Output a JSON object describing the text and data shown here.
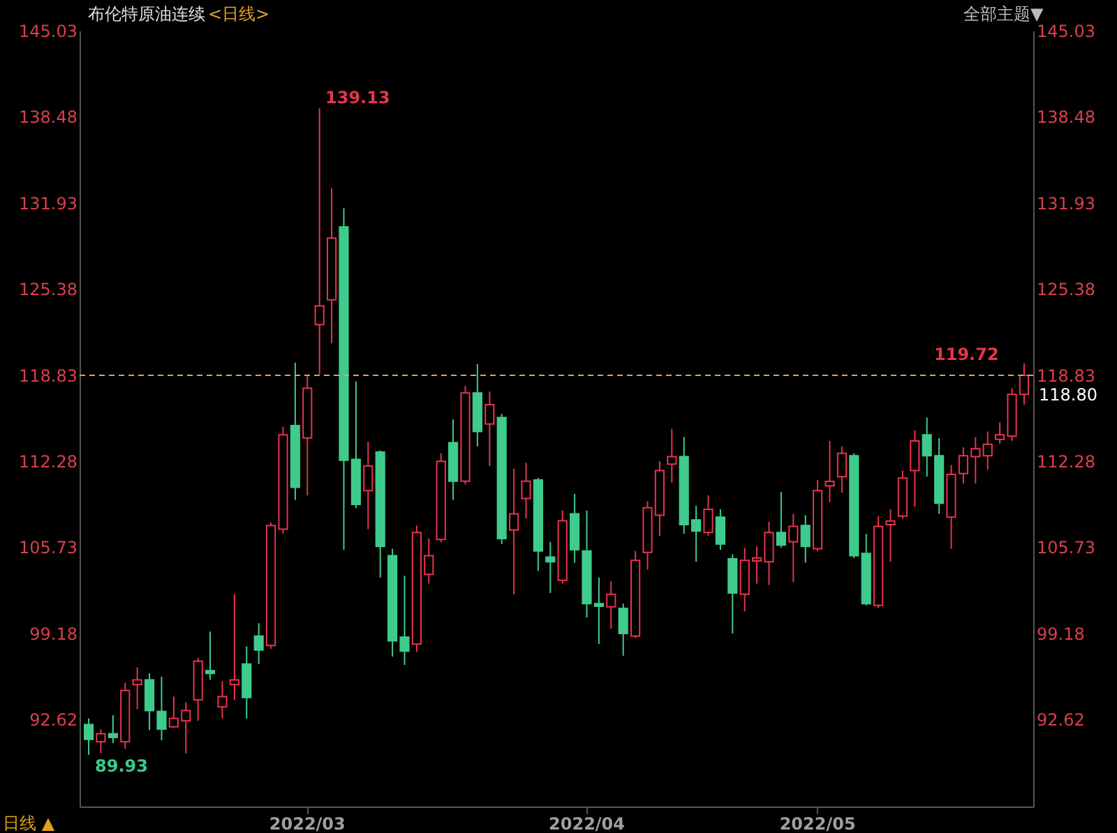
{
  "chart_data": {
    "type": "candlestick",
    "title": "布伦特原油连续",
    "subtitle": "<日线>",
    "categories": [
      null,
      null,
      null,
      null,
      null,
      null,
      null,
      null,
      null,
      null,
      null,
      null,
      null,
      null,
      null,
      null,
      null,
      null,
      "2022/03",
      null,
      null,
      null,
      null,
      null,
      null,
      null,
      null,
      null,
      null,
      null,
      null,
      null,
      null,
      null,
      null,
      null,
      null,
      null,
      null,
      null,
      null,
      "2022/04",
      null,
      null,
      null,
      null,
      null,
      null,
      null,
      null,
      null,
      null,
      null,
      null,
      null,
      null,
      null,
      null,
      null,
      null,
      "2022/05",
      null,
      null,
      null,
      null,
      null,
      null,
      null,
      null,
      null,
      null,
      null,
      null,
      null,
      null,
      null,
      null,
      null
    ],
    "ohlc": [
      [
        92.24,
        92.7,
        89.93,
        91.11
      ],
      [
        90.93,
        91.88,
        90.04,
        91.53
      ],
      [
        91.53,
        92.95,
        90.82,
        91.25
      ],
      [
        90.93,
        95.42,
        90.4,
        94.82
      ],
      [
        95.28,
        96.59,
        93.41,
        95.64
      ],
      [
        95.64,
        96.13,
        91.81,
        93.3
      ],
      [
        93.23,
        95.88,
        91.04,
        91.89
      ],
      [
        92.06,
        94.36,
        91.99,
        92.7
      ],
      [
        92.52,
        93.94,
        90.04,
        93.3
      ],
      [
        94.11,
        97.3,
        92.52,
        97.05
      ],
      [
        96.34,
        99.31,
        95.64,
        96.13
      ],
      [
        93.58,
        95.53,
        92.7,
        94.36
      ],
      [
        95.28,
        102.15,
        94.11,
        95.64
      ],
      [
        96.84,
        98.18,
        92.7,
        94.29
      ],
      [
        98.96,
        99.95,
        96.84,
        97.9
      ],
      [
        98.25,
        107.6,
        98.0,
        107.38
      ],
      [
        107.1,
        114.89,
        106.75,
        114.28
      ],
      [
        114.99,
        119.77,
        109.33,
        110.29
      ],
      [
        114.04,
        118.78,
        109.68,
        117.82
      ],
      [
        122.67,
        139.13,
        118.88,
        124.09
      ],
      [
        124.55,
        133.04,
        121.25,
        129.25
      ],
      [
        130.1,
        131.52,
        105.54,
        112.34
      ],
      [
        112.41,
        118.35,
        108.7,
        108.98
      ],
      [
        110.04,
        113.75,
        107.1,
        111.91
      ],
      [
        112.97,
        113.1,
        103.42,
        105.79
      ],
      [
        105.08,
        105.61,
        97.4,
        98.61
      ],
      [
        98.89,
        103.56,
        96.77,
        97.83
      ],
      [
        98.36,
        107.38,
        97.76,
        106.85
      ],
      [
        103.67,
        106.39,
        102.96,
        105.08
      ],
      [
        106.32,
        112.87,
        106.1,
        112.27
      ],
      [
        113.68,
        115.45,
        109.33,
        110.75
      ],
      [
        110.75,
        118.0,
        110.5,
        117.47
      ],
      [
        117.47,
        119.66,
        113.4,
        114.53
      ],
      [
        115.1,
        117.57,
        111.91,
        116.58
      ],
      [
        115.59,
        115.88,
        105.97,
        106.39
      ],
      [
        107.03,
        111.7,
        102.15,
        108.27
      ],
      [
        109.44,
        112.16,
        107.91,
        110.75
      ],
      [
        110.85,
        111.0,
        103.92,
        105.44
      ],
      [
        104.98,
        106.14,
        102.25,
        104.62
      ],
      [
        103.21,
        108.52,
        102.96,
        107.74
      ],
      [
        108.27,
        109.79,
        104.55,
        105.54
      ],
      [
        105.44,
        108.52,
        100.38,
        101.44
      ],
      [
        101.44,
        103.42,
        98.36,
        101.23
      ],
      [
        101.19,
        103.14,
        99.53,
        102.15
      ],
      [
        101.08,
        101.44,
        97.47,
        99.17
      ],
      [
        98.96,
        105.44,
        98.82,
        104.73
      ],
      [
        105.33,
        109.22,
        104.02,
        108.73
      ],
      [
        108.16,
        112.27,
        106.6,
        111.56
      ],
      [
        112.05,
        114.74,
        110.64,
        112.62
      ],
      [
        112.62,
        114.11,
        106.75,
        107.45
      ],
      [
        107.81,
        108.87,
        104.62,
        106.96
      ],
      [
        106.85,
        109.68,
        106.6,
        108.62
      ],
      [
        108.02,
        108.62,
        105.54,
        105.97
      ],
      [
        104.84,
        105.19,
        99.17,
        102.25
      ],
      [
        102.15,
        105.68,
        100.84,
        104.73
      ],
      [
        104.69,
        105.79,
        102.96,
        104.91
      ],
      [
        104.62,
        107.67,
        102.85,
        106.85
      ],
      [
        106.85,
        109.93,
        105.7,
        105.9
      ],
      [
        106.14,
        108.27,
        103.07,
        107.31
      ],
      [
        107.38,
        108.16,
        104.55,
        105.79
      ],
      [
        105.61,
        110.85,
        105.44,
        110.04
      ],
      [
        110.39,
        113.82,
        109.15,
        110.74
      ],
      [
        111.1,
        113.4,
        109.86,
        112.87
      ],
      [
        112.69,
        112.87,
        104.9,
        105.08
      ],
      [
        105.26,
        106.74,
        101.3,
        101.44
      ],
      [
        101.3,
        108.09,
        101.1,
        107.31
      ],
      [
        107.45,
        108.62,
        104.62,
        107.73
      ],
      [
        108.09,
        111.56,
        107.9,
        110.99
      ],
      [
        111.56,
        114.63,
        108.8,
        113.82
      ],
      [
        114.28,
        115.59,
        111.1,
        112.69
      ],
      [
        112.69,
        114.03,
        108.27,
        109.08
      ],
      [
        108.02,
        111.98,
        105.61,
        111.27
      ],
      [
        111.34,
        113.33,
        110.57,
        112.69
      ],
      [
        112.62,
        114.1,
        110.57,
        113.22
      ],
      [
        112.69,
        114.53,
        111.63,
        113.57
      ],
      [
        113.93,
        115.24,
        113.6,
        114.28
      ],
      [
        114.17,
        117.82,
        113.82,
        117.36
      ],
      [
        117.36,
        119.72,
        116.58,
        118.8
      ]
    ],
    "ylim": [
      86.0,
      145.03
    ],
    "yticks": [
      92.62,
      99.18,
      105.73,
      112.28,
      118.83,
      125.38,
      131.93,
      138.48,
      145.03
    ],
    "y2lim": [
      86.0,
      145.03
    ],
    "y2ticks": [
      92.62,
      99.18,
      105.73,
      112.28,
      118.83,
      125.38,
      131.93,
      138.48,
      145.03
    ],
    "grid": false,
    "ref_lines": [
      {
        "axis": "y2",
        "value": 118.8,
        "label": "118.80",
        "color": "#e0a060",
        "line_style": "dashed"
      }
    ],
    "annotations": [
      "139.13",
      "89.93",
      "119.72",
      "全部主题▼",
      "日线 ▲"
    ]
  }
}
